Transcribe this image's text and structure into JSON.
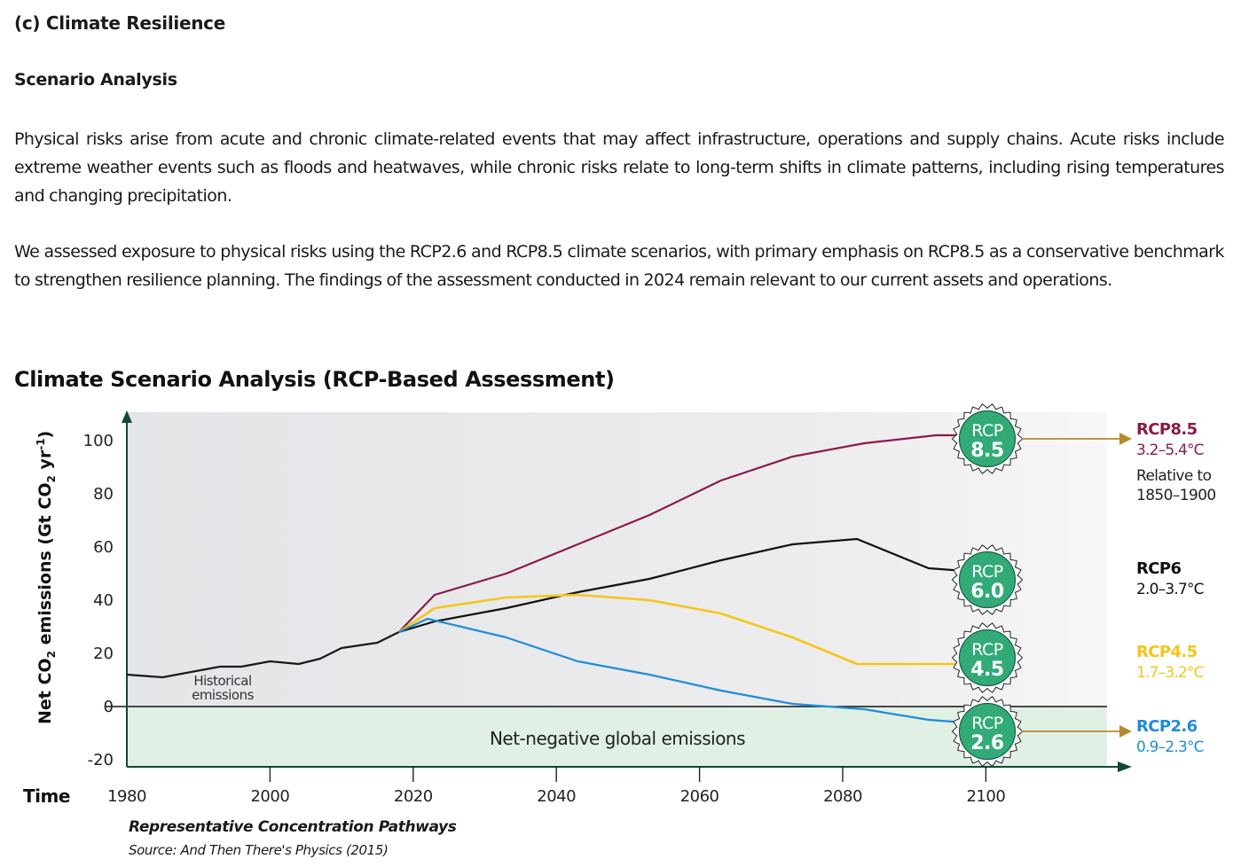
{
  "section": {
    "heading": "(c)  Climate Resilience",
    "subheading": "Scenario Analysis",
    "paragraphs": [
      "Physical risks arise from acute and chronic climate-related events that may affect infrastructure, operations and supply chains. Acute risks include extreme weather events such as floods and heatwaves, while chronic risks relate to long-term shifts in climate patterns, including rising temperatures and changing precipitation.",
      "We assessed exposure to physical risks using the RCP2.6 and RCP8.5 climate scenarios, with primary emphasis on RCP8.5 as a conservative benchmark to strengthen resilience planning. The findings of the assessment conducted in 2024 remain relevant to our current assets and operations."
    ]
  },
  "footnote": {
    "title": "Representative Concentration Pathways",
    "source": "Source: And Then There's Physics (2015)"
  },
  "chart_data": {
    "type": "line",
    "title": "Climate Scenario Analysis (RCP-Based Assessment)",
    "xlabel": "Time",
    "ylabel": "Net CO2 emissions (Gt CO2 yr-1)",
    "ylabel_parts": {
      "a": "Net CO",
      "sub": "2",
      "b": " emissions (Gt CO",
      "sub2": "2",
      "c": " yr",
      "sup": "-1",
      "d": ")"
    },
    "xlim": [
      1980,
      2115
    ],
    "ylim": [
      -23,
      110
    ],
    "x_ticks": [
      1980,
      2000,
      2020,
      2040,
      2060,
      2080,
      2100
    ],
    "y_ticks": [
      100,
      80,
      60,
      40,
      20,
      0,
      -20
    ],
    "grid": false,
    "annotations": {
      "historical": "Historical\nemissions",
      "historical_lines": [
        "Historical",
        "emissions"
      ],
      "net_negative": "Net-negative global emissions",
      "relative_note_lines": [
        "Relative to",
        "1850–1900"
      ]
    },
    "colors": {
      "historical": "#1a1a1a",
      "rcp85": "#8b1a4a",
      "rcp6": "#111111",
      "rcp45": "#f5c518",
      "rcp26": "#1f8dd6",
      "badge": "#2fa876",
      "arrow": "#b38b2e",
      "axis": "#0f4a32",
      "positive_bg": "#e6e7e9",
      "negative_bg": "#e0f0e5"
    },
    "series": [
      {
        "name": "Historical emissions",
        "key": "historical",
        "x": [
          1980,
          1985,
          1993,
          1996,
          2000,
          2004,
          2007,
          2010,
          2015,
          2018
        ],
        "values": [
          12,
          11,
          15,
          15,
          17,
          16,
          18,
          22,
          24,
          28
        ]
      },
      {
        "name": "RCP8.5",
        "key": "rcp85",
        "badge": {
          "top": "RCP",
          "bottom": "8.5"
        },
        "label": "RCP8.5",
        "range": "3.2–5.4°C",
        "x": [
          2018,
          2023,
          2033,
          2043,
          2053,
          2063,
          2073,
          2083,
          2093,
          2097
        ],
        "values": [
          28,
          42,
          50,
          61,
          72,
          85,
          94,
          99,
          102,
          102
        ]
      },
      {
        "name": "RCP6",
        "key": "rcp6",
        "badge": {
          "top": "RCP",
          "bottom": "6.0"
        },
        "label": "RCP6",
        "range": "2.0–3.7°C",
        "x": [
          2018,
          2023,
          2033,
          2043,
          2053,
          2063,
          2073,
          2082,
          2092,
          2097
        ],
        "values": [
          28,
          32,
          37,
          43,
          48,
          55,
          61,
          63,
          52,
          51
        ]
      },
      {
        "name": "RCP4.5",
        "key": "rcp45",
        "badge": {
          "top": "RCP",
          "bottom": "4.5"
        },
        "label": "RCP4.5",
        "range": "1.7–3.2°C",
        "x": [
          2018,
          2023,
          2033,
          2043,
          2053,
          2063,
          2073,
          2082,
          2092,
          2097
        ],
        "values": [
          28,
          37,
          41,
          42,
          40,
          35,
          26,
          16,
          16,
          16
        ]
      },
      {
        "name": "RCP2.6",
        "key": "rcp26",
        "badge": {
          "top": "RCP",
          "bottom": "2.6"
        },
        "label": "RCP2.6",
        "range": "0.9–2.3°C",
        "x": [
          2018,
          2022,
          2033,
          2043,
          2053,
          2063,
          2073,
          2083,
          2092,
          2097
        ],
        "values": [
          28,
          33,
          26,
          17,
          12,
          6,
          1,
          -1,
          -5,
          -6
        ]
      }
    ]
  }
}
